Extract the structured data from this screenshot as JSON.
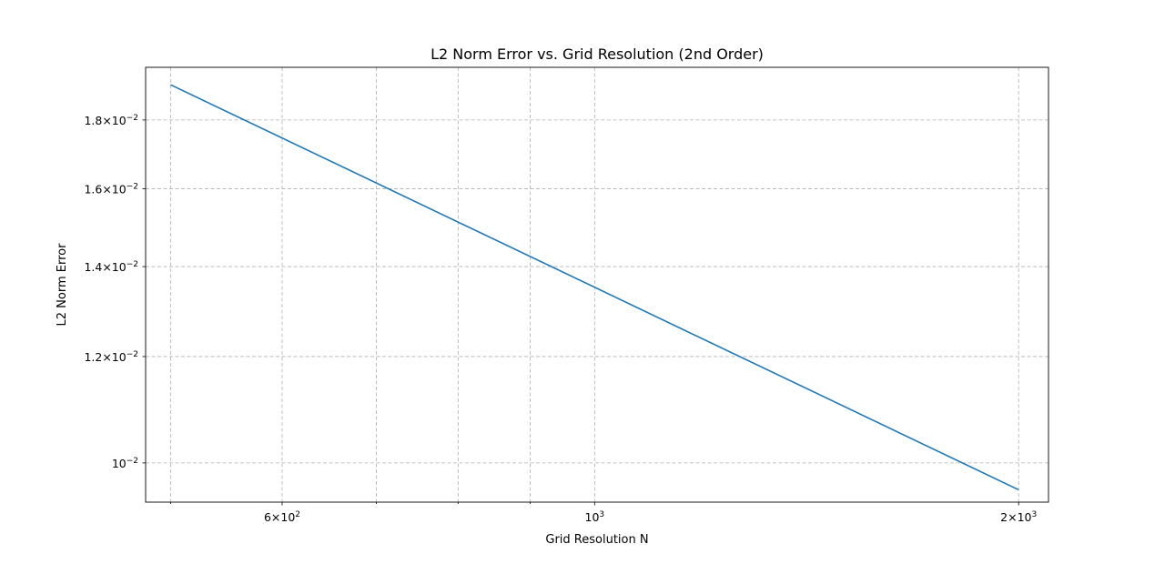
{
  "chart_data": {
    "type": "line",
    "title": "L2 Norm Error vs. Grid Resolution (2nd Order)",
    "xlabel": "Grid Resolution N",
    "ylabel": "L2 Norm Error",
    "xscale": "log",
    "yscale": "log",
    "xlim": [
      480,
      2100
    ],
    "ylim": [
      0.00935,
      0.0197
    ],
    "grid": true,
    "series": [
      {
        "color": "#1f77b4",
        "x": [
          500,
          2000
        ],
        "y": [
          0.01912,
          0.00955
        ]
      }
    ],
    "x_major_ticks": [
      {
        "value": 600,
        "mantissa": "6",
        "base": "10",
        "exp": "2"
      },
      {
        "value": 1000,
        "mantissa": "",
        "base": "10",
        "exp": "3"
      },
      {
        "value": 2000,
        "mantissa": "2",
        "base": "10",
        "exp": "3"
      }
    ],
    "x_minor_ticks": [
      500,
      700,
      800,
      900
    ],
    "y_major_ticks": [
      {
        "value": 0.01,
        "mantissa": "",
        "base": "10",
        "exp": "−2"
      },
      {
        "value": 0.012,
        "mantissa": "1.2",
        "base": "10",
        "exp": "−2"
      },
      {
        "value": 0.014,
        "mantissa": "1.4",
        "base": "10",
        "exp": "−2"
      },
      {
        "value": 0.016,
        "mantissa": "1.6",
        "base": "10",
        "exp": "−2"
      },
      {
        "value": 0.018,
        "mantissa": "1.8",
        "base": "10",
        "exp": "−2"
      }
    ]
  }
}
